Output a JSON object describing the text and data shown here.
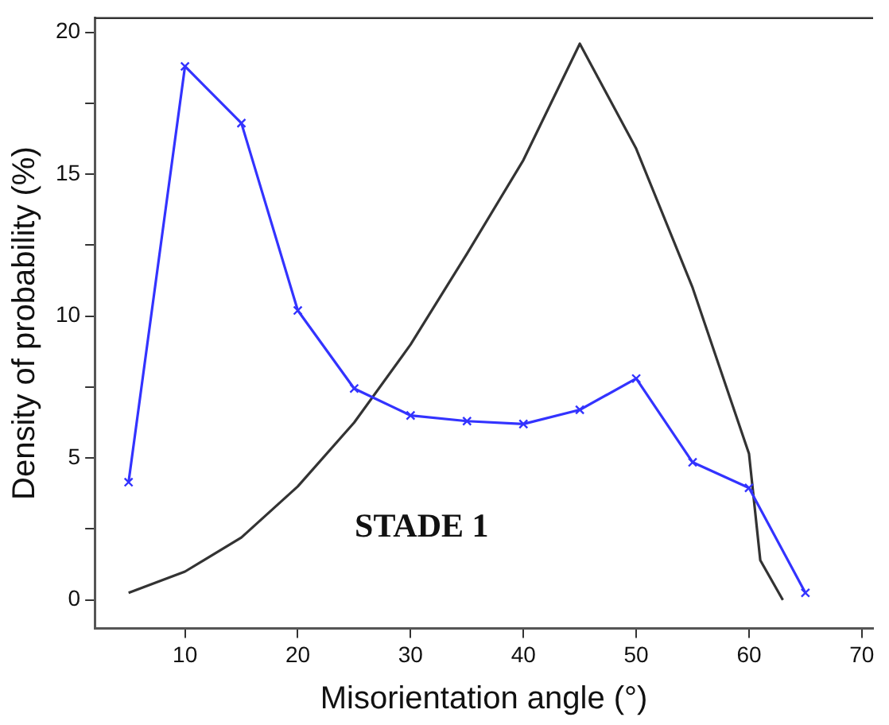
{
  "chart_data": {
    "type": "line",
    "xlabel": "Misorientation angle (°)",
    "ylabel": "Density of probability (%)",
    "annotations": [
      "STADE 1"
    ],
    "xlim": [
      2,
      71
    ],
    "xticks": [
      10,
      20,
      30,
      40,
      50,
      60,
      70
    ],
    "ylim": [
      -1,
      20.5
    ],
    "yticks": [
      0,
      {
        "value": 2.5,
        "label": null
      },
      5,
      {
        "value": 7.5,
        "label": null
      },
      10,
      {
        "value": 12.5,
        "label": null
      },
      15,
      {
        "value": 17.5,
        "label": null
      },
      20
    ],
    "grid": false,
    "legend": false,
    "series": [
      {
        "color": "#3333ff",
        "marker": "cross",
        "x": [
          5,
          10,
          15,
          20,
          25,
          30,
          35,
          40,
          45,
          50,
          55,
          60,
          65
        ],
        "values": [
          4.15,
          18.8,
          16.8,
          10.2,
          7.45,
          6.5,
          6.3,
          6.2,
          6.7,
          7.8,
          4.85,
          3.95,
          0.25
        ]
      },
      {
        "color": "#333333",
        "marker": "none",
        "x": [
          5,
          10,
          15,
          20,
          25,
          30,
          35,
          40,
          45,
          50,
          55,
          60,
          61,
          63
        ],
        "values": [
          0.25,
          1.0,
          2.2,
          4.0,
          6.25,
          9.0,
          12.2,
          15.5,
          19.6,
          15.9,
          11.0,
          5.15,
          1.4,
          0
        ]
      }
    ]
  }
}
